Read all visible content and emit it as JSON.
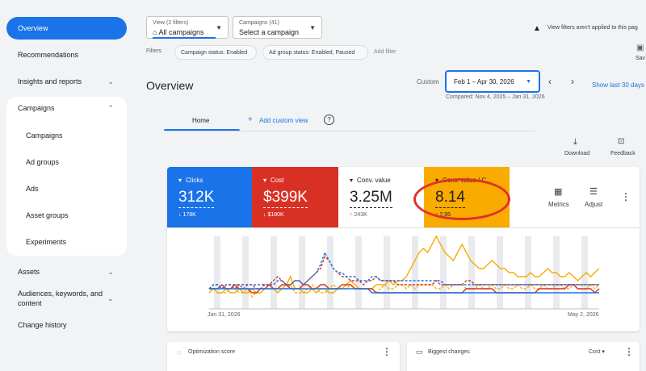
{
  "sidebar": {
    "overview": "Overview",
    "recommendations": "Recommendations",
    "insights": "Insights and reports",
    "campaigns_header": "Campaigns",
    "campaigns_items": [
      "Campaigns",
      "Ad groups",
      "Ads",
      "Asset groups",
      "Experiments"
    ],
    "assets": "Assets",
    "audiences": "Audiences, keywords, and content",
    "change_history": "Change history"
  },
  "topbar": {
    "view_small": "View (2 filters)",
    "view_main": "All campaigns",
    "campaigns_small": "Campaigns (41)",
    "campaigns_main": "Select a campaign",
    "filters_label": "Filters",
    "chip_status": "Campaign status: Enabled",
    "chip_adgroup": "Ad group status: Enabled, Paused",
    "add_filter": "Add filter",
    "warning": "View filters aren't applied to this pag",
    "save": "Sav"
  },
  "header": {
    "title": "Overview",
    "custom": "Custom",
    "date_range": "Feb 1 – Apr 30, 2026",
    "compared": "Compared: Nov 4, 2025 – Jan 31, 2026",
    "show_last": "Show last 30 days"
  },
  "tabs": {
    "home": "Home",
    "add_view": "Add custom view"
  },
  "actions": {
    "download": "Download",
    "feedback": "Feedback"
  },
  "metrics": [
    {
      "label": "Clicks",
      "value": "312K",
      "change": "178K",
      "dir": "down",
      "bg": "#1a73e8",
      "fg": "#ffffff"
    },
    {
      "label": "Cost",
      "value": "$399K",
      "change": "$180K",
      "dir": "down",
      "bg": "#d93025",
      "fg": "#ffffff"
    },
    {
      "label": "Conv. value",
      "value": "3.25M",
      "change": "243K",
      "dir": "up",
      "bg": "#ffffff",
      "fg": "#202124"
    },
    {
      "label": "Conv. value / C",
      "value": "8.14",
      "change": "2.95",
      "dir": "up",
      "bg": "#f9ab00",
      "fg": "#202124"
    }
  ],
  "tools": {
    "metrics": "Metrics",
    "adjust": "Adjust"
  },
  "chart_data": {
    "type": "line",
    "x_start": "Jan 31, 2026",
    "x_end": "May 2, 2026",
    "series": [
      {
        "color": "#f9ab00",
        "style": "solid",
        "values": [
          4,
          5,
          4,
          4,
          5,
          4,
          4,
          5,
          4,
          4,
          5,
          4,
          4,
          5,
          5,
          5,
          4,
          5,
          6,
          8,
          5,
          5,
          4,
          4,
          5,
          4,
          5,
          5,
          4,
          4,
          5,
          5,
          6,
          7,
          6,
          5,
          5,
          5,
          5,
          6,
          6,
          6,
          7,
          6,
          7,
          7,
          8,
          10,
          12,
          14,
          15,
          14,
          16,
          18,
          16,
          14,
          13,
          12,
          14,
          16,
          14,
          12,
          11,
          10,
          10,
          11,
          12,
          11,
          10,
          10,
          9,
          9,
          8,
          8,
          8,
          9,
          8,
          8,
          9,
          10,
          9,
          9,
          8,
          8,
          9,
          8,
          7,
          8,
          9,
          8,
          9,
          10
        ]
      },
      {
        "color": "#f9ab00",
        "style": "dashed",
        "values": [
          5,
          5,
          4,
          4,
          4,
          5,
          5,
          4,
          4,
          5,
          3,
          4,
          4,
          5,
          6,
          5,
          4,
          5,
          5,
          6,
          4,
          4,
          4,
          5,
          6,
          5,
          4,
          4,
          5,
          6,
          5,
          5,
          5,
          6,
          5,
          5,
          5,
          5,
          5,
          4,
          5,
          6,
          5,
          5,
          6,
          6,
          5,
          6,
          5,
          6,
          6,
          6,
          6,
          5,
          5,
          6,
          5,
          6,
          6,
          6,
          5,
          5,
          5,
          6,
          5,
          5,
          6,
          5,
          5,
          6,
          5,
          5,
          6,
          5,
          5,
          6,
          5,
          5,
          6,
          5,
          5,
          6,
          6,
          5,
          5,
          6,
          5,
          5,
          5,
          6,
          5,
          6
        ]
      },
      {
        "color": "#d93025",
        "style": "solid",
        "values": [
          5,
          5,
          5,
          6,
          5,
          5,
          6,
          5,
          5,
          5,
          4,
          4,
          5,
          5,
          6,
          5,
          5,
          6,
          6,
          5,
          5,
          5,
          6,
          6,
          5,
          5,
          6,
          6,
          5,
          5,
          5,
          6,
          6,
          6,
          5,
          5,
          5,
          5,
          5,
          4,
          4,
          4,
          4,
          4,
          4,
          4,
          4,
          4,
          4,
          4,
          4,
          4,
          4,
          4,
          4,
          4,
          4,
          4,
          4,
          4,
          5,
          5,
          5,
          5,
          5,
          5,
          5,
          4,
          4,
          4,
          4,
          4,
          4,
          4,
          4,
          4,
          4,
          5,
          5,
          5,
          5,
          5,
          5,
          5,
          6,
          6,
          5,
          5,
          5,
          5,
          4,
          5
        ]
      },
      {
        "color": "#d93025",
        "style": "dashed",
        "values": [
          5,
          6,
          6,
          5,
          6,
          6,
          5,
          6,
          6,
          6,
          6,
          5,
          5,
          6,
          6,
          7,
          8,
          7,
          6,
          6,
          7,
          7,
          6,
          7,
          8,
          9,
          10,
          13,
          12,
          10,
          9,
          8,
          8,
          7,
          7,
          7,
          6,
          7,
          7,
          8,
          7,
          7,
          7,
          7,
          6,
          6,
          6,
          6,
          6,
          6,
          6,
          6,
          6,
          7,
          6,
          6,
          6,
          6,
          6,
          6,
          7,
          7,
          6,
          6,
          6,
          6,
          6,
          6,
          6,
          6,
          6,
          6,
          6,
          6,
          6,
          6,
          6,
          6,
          6,
          6,
          6,
          6,
          6,
          6,
          6,
          6,
          6,
          6,
          6,
          6,
          6,
          6
        ]
      },
      {
        "color": "#1a73e8",
        "style": "solid",
        "values": [
          5,
          5,
          5,
          5,
          5,
          5,
          5,
          5,
          5,
          5,
          5,
          5,
          5,
          5,
          5,
          5,
          5,
          5,
          5,
          5,
          5,
          5,
          5,
          5,
          5,
          5,
          5,
          5,
          5,
          5,
          5,
          5,
          5,
          5,
          5,
          5,
          5,
          5,
          4,
          4,
          4,
          4,
          4,
          4,
          4,
          4,
          4,
          4,
          4,
          4,
          4,
          4,
          4,
          4,
          4,
          4,
          4,
          4,
          4,
          4,
          4,
          4,
          4,
          4,
          4,
          4,
          4,
          4,
          4,
          4,
          4,
          4,
          4,
          4,
          4,
          4,
          4,
          4,
          4,
          4,
          4,
          4,
          4,
          4,
          4,
          4,
          4,
          4,
          4,
          4,
          4,
          4
        ]
      },
      {
        "color": "#1a73e8",
        "style": "dashed",
        "values": [
          5,
          6,
          6,
          5,
          6,
          6,
          6,
          6,
          5,
          6,
          6,
          6,
          6,
          6,
          6,
          6,
          7,
          7,
          6,
          6,
          7,
          7,
          6,
          7,
          8,
          9,
          11,
          14,
          12,
          10,
          9,
          9,
          8,
          8,
          8,
          7,
          7,
          7,
          8,
          8,
          7,
          7,
          7,
          7,
          7,
          7,
          7,
          7,
          7,
          7,
          7,
          7,
          7,
          7,
          7,
          6,
          6,
          6,
          6,
          6,
          6,
          6,
          6,
          6,
          6,
          6,
          6,
          6,
          6,
          6,
          6,
          6,
          6,
          6,
          6,
          6,
          6,
          6,
          6,
          6,
          6,
          6,
          6,
          6,
          6,
          6,
          6,
          6,
          6,
          6,
          6,
          6
        ]
      }
    ],
    "ylim": [
      0,
      18
    ],
    "grid": true
  },
  "bottom": {
    "optimization": "Optimization score",
    "biggest": "Biggest changes",
    "cost": "Cost"
  }
}
